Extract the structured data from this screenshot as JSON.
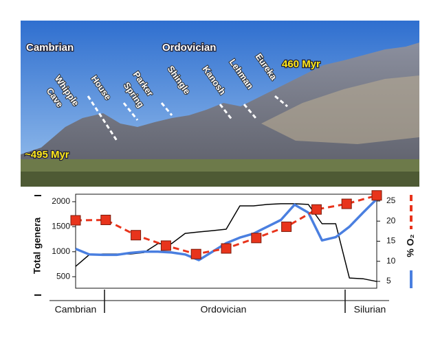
{
  "photo": {
    "cambrian": "Cambrian",
    "ordovician": "Ordovician",
    "age_top": "460 Myr",
    "age_bottom": "~495 Myr",
    "formations": [
      [
        "Whipple",
        "Cave"
      ],
      [
        "House"
      ],
      [
        "Parker",
        "Spring"
      ],
      [
        "Shingle"
      ],
      [
        "Kanosh"
      ],
      [
        "Lehman"
      ],
      [
        "Eureka"
      ]
    ]
  },
  "chart_data": {
    "type": "line",
    "ylabel": "Total genera",
    "y2label": "% O₂",
    "periods": [
      "Cambrian",
      "Ordovician",
      "Silurian"
    ],
    "ylim": [
      270,
      2150
    ],
    "yticks": [
      500,
      1000,
      1500,
      2000
    ],
    "y2lim": [
      3.3,
      26.7
    ],
    "y2ticks": [
      5,
      10,
      15,
      20,
      25
    ],
    "grid": false,
    "series": [
      {
        "color": "#000000",
        "line_style": "solid",
        "values": [
          707,
          941,
          955,
          955,
          955,
          983,
          1161,
          1161,
          1367,
          1395,
          1422,
          1450,
          1917,
          1917,
          1945,
          1959,
          1959,
          1945,
          1560,
          1560,
          474,
          460,
          405
        ]
      },
      {
        "color": "#4a7fe0",
        "line_style": "solid",
        "axis": "y2",
        "values": [
          13.1,
          11.7,
          11.6,
          11.6,
          12.1,
          12.4,
          12.4,
          12.2,
          11.7,
          10.3,
          12.4,
          14.5,
          15.9,
          16.9,
          18.6,
          20.3,
          24.1,
          22.1,
          15.2,
          16.0,
          18.6,
          22.1,
          25.5
        ]
      },
      {
        "color": "#e8341c",
        "line_style": "dashed",
        "marker": "square",
        "axis": "y2",
        "values": [
          20.2,
          20.3,
          16.5,
          13.9,
          11.8,
          13.2,
          15.8,
          18.6,
          22.9,
          24.3,
          26.4
        ]
      }
    ]
  }
}
